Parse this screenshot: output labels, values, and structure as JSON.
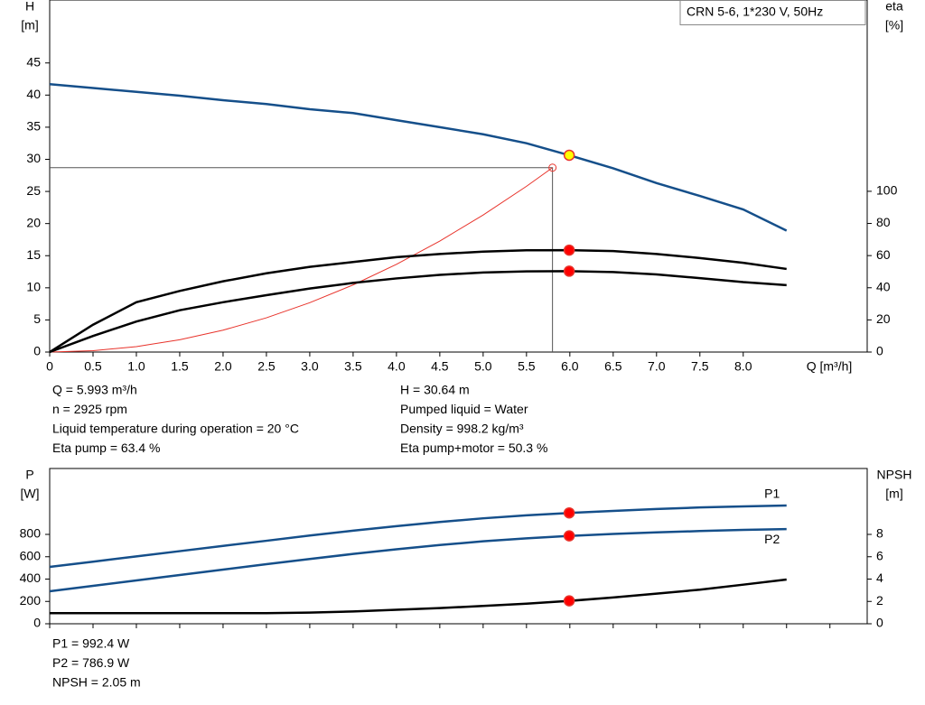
{
  "chart_data": [
    {
      "type": "line",
      "title": "CRN 5-6, 1*230 V, 50Hz",
      "y_label": [
        "H",
        "[m]"
      ],
      "y2_label": [
        "eta",
        "[%]"
      ],
      "x_label": "Q [m³/h]",
      "xlim": [
        0,
        9.43
      ],
      "ylim": [
        0,
        54.8
      ],
      "y2lim": [
        0,
        219
      ],
      "xtick_labels": true,
      "xticks": [
        0,
        0.5,
        {
          "value": 1,
          "label": "1.0"
        },
        1.5,
        {
          "value": 2,
          "label": "2.0"
        },
        2.5,
        {
          "value": 3,
          "label": "3.0"
        },
        3.5,
        {
          "value": 4,
          "label": "4.0"
        },
        4.5,
        {
          "value": 5,
          "label": "5.0"
        },
        5.5,
        {
          "value": 6,
          "label": "6.0"
        },
        6.5,
        {
          "value": 7,
          "label": "7.0"
        },
        7.5,
        {
          "value": 8,
          "label": "8.0"
        }
      ],
      "yticks": [
        0,
        5,
        10,
        15,
        20,
        25,
        30,
        35,
        40,
        45
      ],
      "y2ticks": [
        0,
        20,
        40,
        60,
        80,
        100
      ],
      "x": [
        0,
        0.5,
        1,
        1.5,
        2,
        2.5,
        3,
        3.5,
        4,
        4.5,
        5,
        5.5,
        6,
        6.5,
        7,
        7.5,
        8,
        8.5
      ],
      "series": [
        {
          "color": "#154f8a",
          "values": [
            41.7,
            41.1,
            40.5,
            39.9,
            39.2,
            38.6,
            37.8,
            37.2,
            36.1,
            35.0,
            33.9,
            32.5,
            30.6,
            28.6,
            26.3,
            24.3,
            22.2,
            18.9
          ]
        },
        {
          "color": "#000000",
          "axis": "y2",
          "values": [
            0,
            17,
            31,
            38,
            44,
            49,
            53,
            56,
            59,
            61,
            62.5,
            63.3,
            63.4,
            62.8,
            61,
            58.5,
            55.5,
            51.7
          ]
        },
        {
          "color": "#000000",
          "axis": "y2",
          "values": [
            0,
            10,
            19,
            26,
            31,
            35.4,
            39.5,
            43,
            45.8,
            48,
            49.5,
            50.2,
            50.3,
            49.8,
            48.3,
            46,
            43.5,
            41.6
          ]
        }
      ],
      "system_curve": {
        "color": "#e8332b",
        "x": [
          0,
          0.5,
          1,
          1.5,
          2,
          2.5,
          3,
          3.5,
          4,
          4.5,
          5,
          5.5,
          5.8
        ],
        "values": [
          0,
          0.21,
          0.85,
          1.92,
          3.41,
          5.33,
          7.68,
          10.45,
          13.65,
          17.28,
          21.33,
          25.8,
          28.7
        ]
      },
      "guide": {
        "x": 5.8,
        "y": 28.7
      },
      "points": [
        {
          "x": 5.993,
          "y": 30.64,
          "color": "#ffff00"
        },
        {
          "x": 5.993,
          "y": 63.4,
          "axis": "y2",
          "color": "#ff0000"
        },
        {
          "x": 5.993,
          "y": 50.3,
          "axis": "y2",
          "color": "#ff0000"
        }
      ],
      "info": [
        [
          "Q = 5.993 m³/h",
          "n = 2925 rpm",
          "Liquid temperature during operation = 20 °C",
          "Eta pump = 63.4 %"
        ],
        [
          "H = 30.64 m",
          "Pumped liquid = Water",
          "Density = 998.2 kg/m³",
          "Eta pump+motor = 50.3 %"
        ]
      ]
    },
    {
      "type": "line",
      "y_label": [
        "P",
        "[W]"
      ],
      "y2_label": [
        "NPSH",
        "[m]"
      ],
      "xlim": [
        0,
        9.43
      ],
      "ylim": [
        0,
        1390
      ],
      "y2lim": [
        0,
        13.9
      ],
      "xtick_labels": false,
      "xticks": [
        0,
        0.5,
        1,
        1.5,
        2,
        2.5,
        3,
        3.5,
        4,
        4.5,
        5,
        5.5,
        6,
        6.5,
        7,
        7.5,
        8,
        8.5,
        9
      ],
      "yticks": [
        0,
        200,
        400,
        600,
        800
      ],
      "y2ticks": [
        0,
        2,
        4,
        6,
        8
      ],
      "x": [
        0,
        0.5,
        1,
        1.5,
        2,
        2.5,
        3,
        3.5,
        4,
        4.5,
        5,
        5.5,
        6,
        6.5,
        7,
        7.5,
        8,
        8.5
      ],
      "series": [
        {
          "name": "P1",
          "color": "#154f8a",
          "values": [
            509,
            556,
            603,
            650,
            697,
            743,
            790,
            833,
            874,
            911,
            944,
            971,
            992.4,
            1010,
            1027,
            1041,
            1051,
            1059
          ]
        },
        {
          "name": "P2",
          "color": "#154f8a",
          "values": [
            291,
            339,
            388,
            436,
            485,
            533,
            580,
            625,
            667,
            705,
            738,
            765,
            786.9,
            804,
            818,
            830,
            840,
            848
          ]
        },
        {
          "color": "#000000",
          "axis": "y2",
          "values": [
            0.95,
            0.95,
            0.95,
            0.95,
            0.95,
            0.95,
            1.0,
            1.1,
            1.25,
            1.4,
            1.6,
            1.8,
            2.05,
            2.35,
            2.7,
            3.05,
            3.5,
            3.96
          ]
        }
      ],
      "points": [
        {
          "x": 5.993,
          "y": 992.4,
          "color": "#ff0000"
        },
        {
          "x": 5.993,
          "y": 786.9,
          "color": "#ff0000"
        },
        {
          "x": 5.993,
          "y": 2.05,
          "axis": "y2",
          "color": "#ff0000"
        }
      ],
      "info": [
        [
          "P1 = 992.4 W",
          "P2 = 786.9 W",
          "NPSH = 2.05 m"
        ]
      ]
    }
  ]
}
